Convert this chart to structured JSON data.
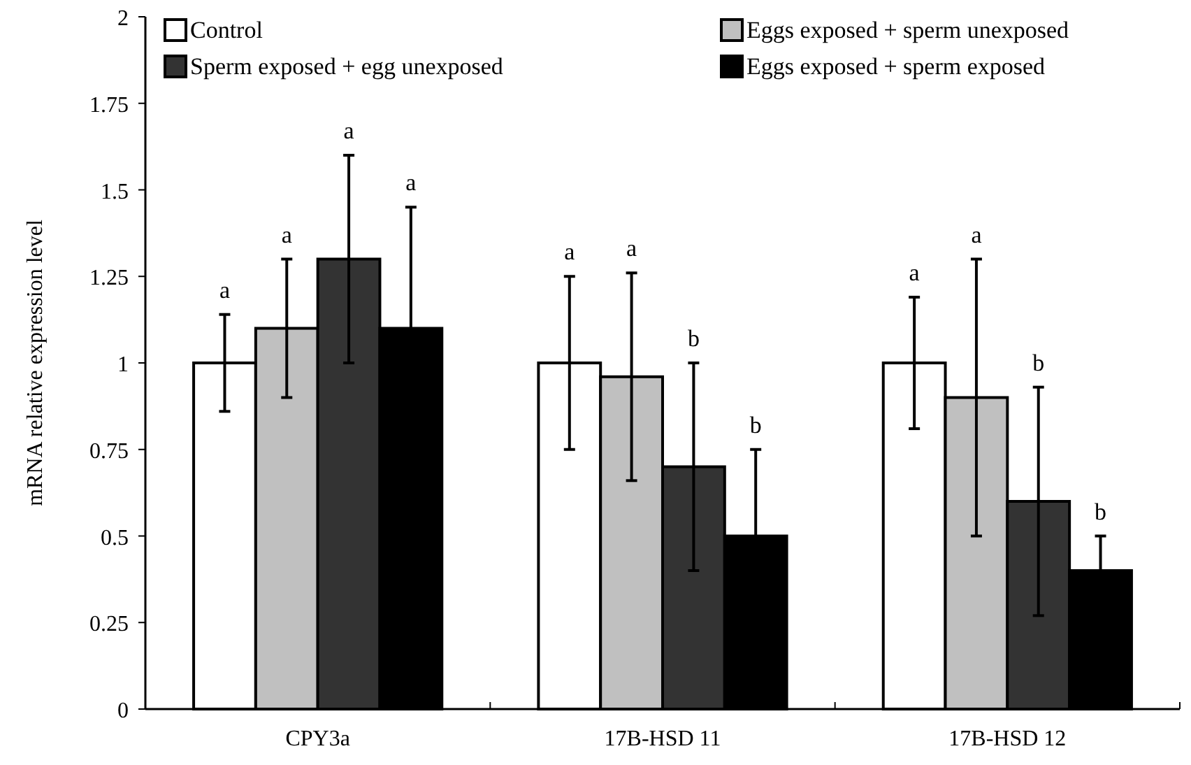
{
  "chart_data": {
    "type": "bar",
    "ylabel": "mRNA relative expression level",
    "categories": [
      "CPY3a",
      "17B-HSD 11",
      "17B-HSD 12"
    ],
    "series": [
      {
        "name": "Control",
        "color": "#ffffff",
        "values": [
          1.0,
          1.0,
          1.0
        ],
        "errors": [
          0.14,
          0.25,
          0.19
        ]
      },
      {
        "name": "Eggs exposed + sperm unexposed",
        "color": "#c0c0c0",
        "values": [
          1.1,
          0.96,
          0.9
        ],
        "errors": [
          0.2,
          0.3,
          0.4
        ]
      },
      {
        "name": "Sperm exposed + egg unexposed",
        "color": "#333333",
        "values": [
          1.3,
          0.7,
          0.6
        ],
        "errors": [
          0.3,
          0.3,
          0.33
        ]
      },
      {
        "name": "Eggs exposed + sperm exposed",
        "color": "#000000",
        "values": [
          1.1,
          0.5,
          0.4
        ],
        "errors": [
          0.35,
          0.25,
          0.1
        ]
      }
    ],
    "ylim": [
      0,
      2
    ],
    "yticks": [
      0,
      0.25,
      0.5,
      0.75,
      1,
      1.25,
      1.5,
      1.75,
      2
    ],
    "grid": false,
    "legend": "top",
    "annotations": [
      "a",
      "a",
      "a",
      "a",
      "a",
      "a",
      "b",
      "b",
      "a",
      "a",
      "b",
      "b"
    ]
  }
}
